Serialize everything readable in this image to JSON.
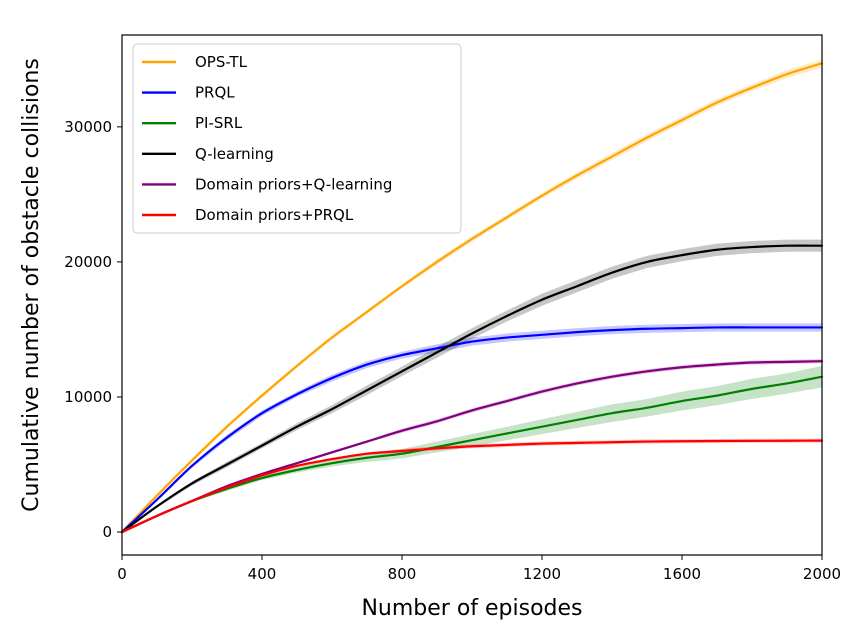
{
  "chart_data": {
    "type": "line",
    "title": "",
    "xlabel": "Number of episodes",
    "ylabel": "Cumulative number of obstacle collisions",
    "xlim": [
      0,
      2000
    ],
    "ylim": [
      -1700,
      36800
    ],
    "x_ticks": [
      0,
      400,
      800,
      1200,
      1600,
      2000
    ],
    "x_tick_labels": [
      "0",
      "400",
      "800",
      "1200",
      "1600",
      "2000"
    ],
    "y_ticks": [
      0,
      10000,
      20000,
      30000
    ],
    "y_tick_labels": [
      "0",
      "10000",
      "20000",
      "30000"
    ],
    "grid": false,
    "legend_position": "top-left",
    "x": [
      0,
      100,
      200,
      300,
      400,
      500,
      600,
      700,
      800,
      900,
      1000,
      1100,
      1200,
      1300,
      1400,
      1500,
      1600,
      1700,
      1800,
      1900,
      2000
    ],
    "series": [
      {
        "name": "OPS-TL",
        "color": "#FFA500",
        "values": [
          0,
          2700,
          5300,
          7800,
          10100,
          12300,
          14400,
          16300,
          18200,
          20000,
          21700,
          23300,
          24900,
          26400,
          27800,
          29200,
          30500,
          31800,
          32900,
          33900,
          34700
        ],
        "band": [
          0,
          100,
          150,
          150,
          150,
          150,
          150,
          150,
          150,
          200,
          200,
          200,
          200,
          250,
          250,
          250,
          250,
          250,
          250,
          300,
          300
        ]
      },
      {
        "name": "PRQL",
        "color": "#0000FF",
        "values": [
          0,
          2400,
          4900,
          7000,
          8800,
          10200,
          11400,
          12400,
          13100,
          13600,
          14100,
          14400,
          14600,
          14800,
          14950,
          15050,
          15100,
          15150,
          15150,
          15150,
          15150
        ],
        "band": [
          0,
          100,
          150,
          200,
          200,
          200,
          250,
          250,
          250,
          300,
          300,
          300,
          300,
          300,
          300,
          300,
          300,
          300,
          300,
          300,
          300
        ]
      },
      {
        "name": "PI-SRL",
        "color": "#008000",
        "values": [
          0,
          1200,
          2300,
          3200,
          4000,
          4600,
          5100,
          5500,
          5800,
          6300,
          6800,
          7300,
          7800,
          8300,
          8800,
          9200,
          9700,
          10100,
          10600,
          11000,
          11500
        ],
        "band": [
          0,
          100,
          100,
          150,
          150,
          200,
          250,
          300,
          350,
          400,
          450,
          500,
          550,
          600,
          650,
          650,
          700,
          700,
          750,
          750,
          800
        ]
      },
      {
        "name": "Q-learning",
        "color": "#000000",
        "values": [
          0,
          1900,
          3600,
          5000,
          6400,
          7800,
          9100,
          10500,
          11900,
          13300,
          14700,
          16000,
          17200,
          18200,
          19200,
          20000,
          20500,
          20900,
          21100,
          21200,
          21200
        ],
        "band": [
          0,
          100,
          150,
          200,
          200,
          250,
          300,
          350,
          350,
          400,
          400,
          400,
          450,
          450,
          450,
          450,
          450,
          450,
          450,
          450,
          450
        ]
      },
      {
        "name": "Domain priors+Q-learning",
        "color": "#800080",
        "values": [
          0,
          1200,
          2300,
          3400,
          4300,
          5100,
          5900,
          6700,
          7500,
          8200,
          9000,
          9700,
          10400,
          11000,
          11500,
          11900,
          12200,
          12400,
          12550,
          12600,
          12650
        ],
        "band": [
          0,
          50,
          100,
          100,
          100,
          100,
          100,
          100,
          150,
          150,
          150,
          150,
          150,
          150,
          150,
          150,
          150,
          150,
          150,
          150,
          150
        ]
      },
      {
        "name": "Domain priors+PRQL",
        "color": "#FF0000",
        "values": [
          0,
          1200,
          2300,
          3300,
          4200,
          4900,
          5400,
          5800,
          6000,
          6200,
          6350,
          6450,
          6550,
          6600,
          6650,
          6700,
          6720,
          6740,
          6750,
          6760,
          6770
        ],
        "band": [
          0,
          50,
          100,
          100,
          100,
          100,
          100,
          100,
          150,
          150,
          150,
          150,
          150,
          150,
          150,
          150,
          150,
          150,
          150,
          150,
          150
        ]
      }
    ]
  }
}
